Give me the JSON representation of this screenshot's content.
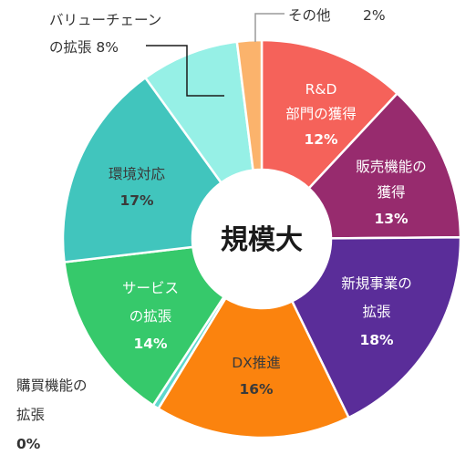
{
  "chart_data": {
    "type": "donut",
    "center_label": "規模大",
    "slices": [
      {
        "label": "R&D部門の獲得",
        "label_lines": [
          "R&D",
          "部門の獲得"
        ],
        "value": 12,
        "pct_text": "12%",
        "color": "#f5625a",
        "label_color": "#ffffff"
      },
      {
        "label": "販売機能の獲得",
        "label_lines": [
          "販売機能の",
          "獲得"
        ],
        "value": 13,
        "pct_text": "13%",
        "color": "#972b6e",
        "label_color": "#ffffff"
      },
      {
        "label": "新規事業の拡張",
        "label_lines": [
          "新規事業の",
          "拡張"
        ],
        "value": 18,
        "pct_text": "18%",
        "color": "#5a2d99",
        "label_color": "#ffffff"
      },
      {
        "label": "DX推進",
        "label_lines": [
          "DX推進"
        ],
        "value": 16,
        "pct_text": "16%",
        "color": "#fb830e",
        "label_color": "#333333"
      },
      {
        "label": "購買機能の拡張",
        "label_lines": [
          "購買機能の",
          "拡張"
        ],
        "value": 0.5,
        "pct_text": "0%",
        "color": "#5fd8cc",
        "label_color": "#333333"
      },
      {
        "label": "サービスの拡張",
        "label_lines": [
          "サービス",
          "の拡張"
        ],
        "value": 14,
        "pct_text": "14%",
        "color": "#36c96b",
        "label_color": "#ffffff"
      },
      {
        "label": "環境対応",
        "label_lines": [
          "環境対応"
        ],
        "value": 17,
        "pct_text": "17%",
        "color": "#41c5bd",
        "label_color": "#333333"
      },
      {
        "label": "バリューチェーンの拡張",
        "label_lines": [
          "バリューチェーン",
          "の拡張 8%"
        ],
        "value": 8,
        "pct_text": "8%",
        "color": "#96f0e6",
        "label_color": "#333333"
      },
      {
        "label": "その他",
        "label_lines": [
          "その他"
        ],
        "value": 2,
        "pct_text": "2%",
        "color": "#fbb36c",
        "label_color": "#333333"
      }
    ]
  }
}
